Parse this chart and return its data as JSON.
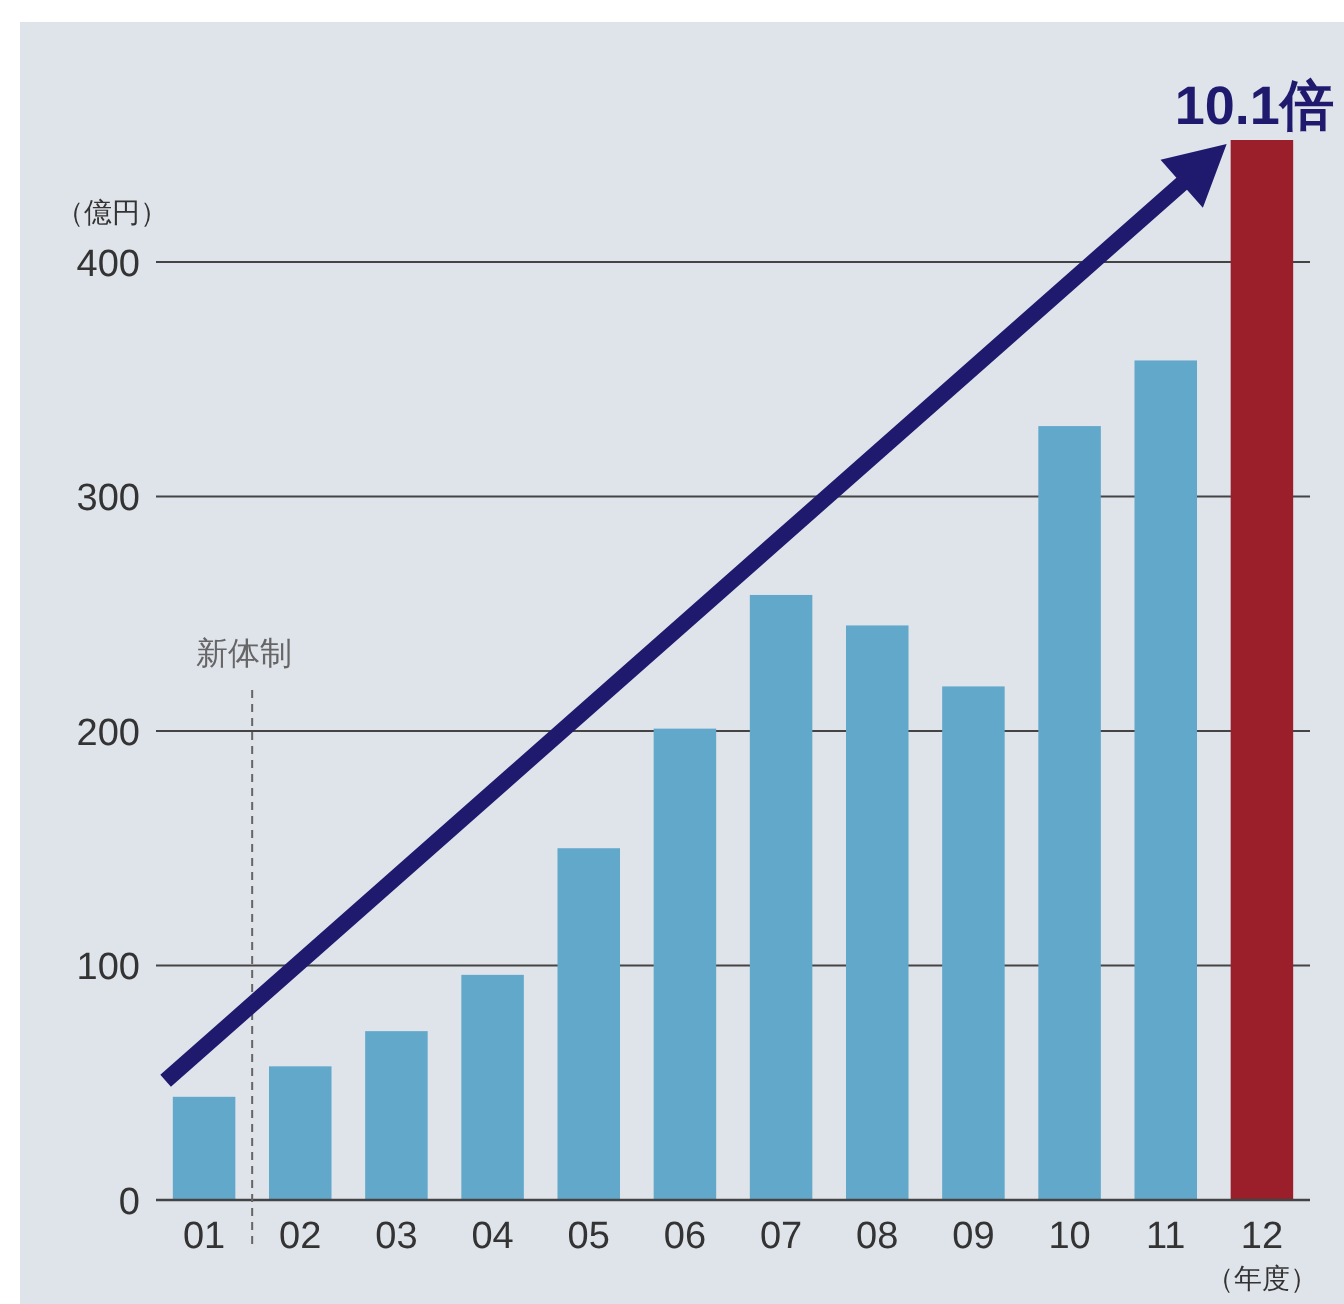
{
  "chart_data": {
    "type": "bar",
    "ylabel": "（億円）",
    "xlabel": "（年度）",
    "categories": [
      "01",
      "02",
      "03",
      "04",
      "05",
      "06",
      "07",
      "08",
      "09",
      "10",
      "11",
      "12"
    ],
    "values": [
      44,
      57,
      72,
      96,
      150,
      201,
      258,
      245,
      219,
      330,
      358,
      452
    ],
    "colors": [
      "#62a8cb",
      "#62a8cb",
      "#62a8cb",
      "#62a8cb",
      "#62a8cb",
      "#62a8cb",
      "#62a8cb",
      "#62a8cb",
      "#62a8cb",
      "#62a8cb",
      "#62a8cb",
      "#9b1f2b"
    ],
    "ylim": [
      0,
      452
    ],
    "yticks": [
      0,
      100,
      200,
      300,
      400
    ],
    "grid": "y",
    "ref_lines": [
      {
        "axis": "x",
        "value": "02",
        "label": "新体制",
        "color": "#666666",
        "line_style": "dashed"
      }
    ],
    "annotations": [
      {
        "text": "10.1倍",
        "x": "12",
        "y": 452
      }
    ]
  }
}
